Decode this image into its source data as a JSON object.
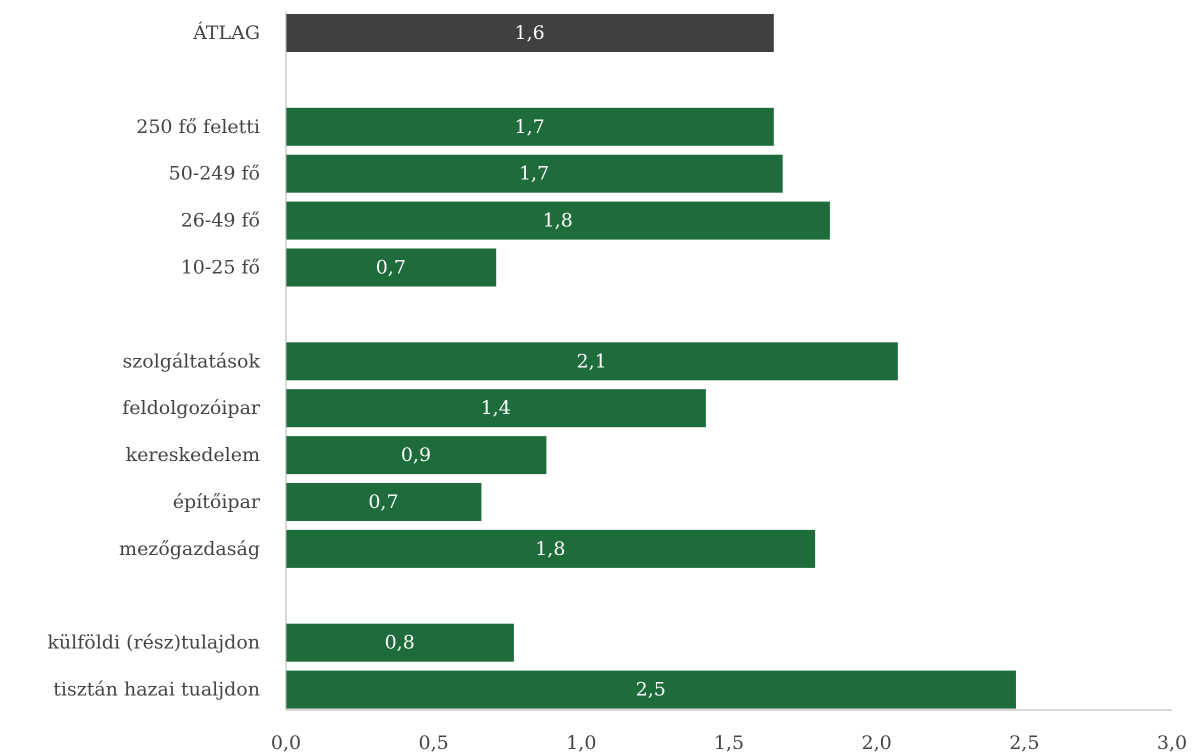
{
  "chart_data": {
    "type": "bar",
    "orientation": "horizontal",
    "categories": [
      "ÁTLAG",
      "250 fő feletti",
      "50-249 fő",
      "26-49 fő",
      "10-25 fő",
      "szolgáltatások",
      "feldolgozóipar",
      "kereskedelem",
      "építőipar",
      "mezőgazdaság",
      "külföldi (rész)tulajdon",
      "tisztán hazai tualjdon"
    ],
    "values": [
      1.65,
      1.65,
      1.68,
      1.84,
      0.71,
      2.07,
      1.42,
      0.88,
      0.66,
      1.79,
      0.77,
      2.47
    ],
    "value_labels": [
      "1,6",
      "1,7",
      "1,7",
      "1,8",
      "0,7",
      "2,1",
      "1,4",
      "0,9",
      "0,7",
      "1,8",
      "0,8",
      "2,5"
    ],
    "groups": [
      [
        0
      ],
      [
        1,
        2,
        3,
        4
      ],
      [
        5,
        6,
        7,
        8,
        9
      ],
      [
        10,
        11
      ]
    ],
    "bar_colors": [
      "#404040",
      "#1e6b3c",
      "#1e6b3c",
      "#1e6b3c",
      "#1e6b3c",
      "#1e6b3c",
      "#1e6b3c",
      "#1e6b3c",
      "#1e6b3c",
      "#1e6b3c",
      "#1e6b3c",
      "#1e6b3c"
    ],
    "xlim": [
      0,
      3.0
    ],
    "x_ticks": [
      0,
      0.5,
      1.0,
      1.5,
      2.0,
      2.5,
      3.0
    ],
    "x_tick_labels": [
      "0,0",
      "0,5",
      "1,0",
      "1,5",
      "2,0",
      "2,5",
      "3,0"
    ],
    "title": "",
    "xlabel": "",
    "ylabel": "",
    "grid": false,
    "legend": "none"
  }
}
